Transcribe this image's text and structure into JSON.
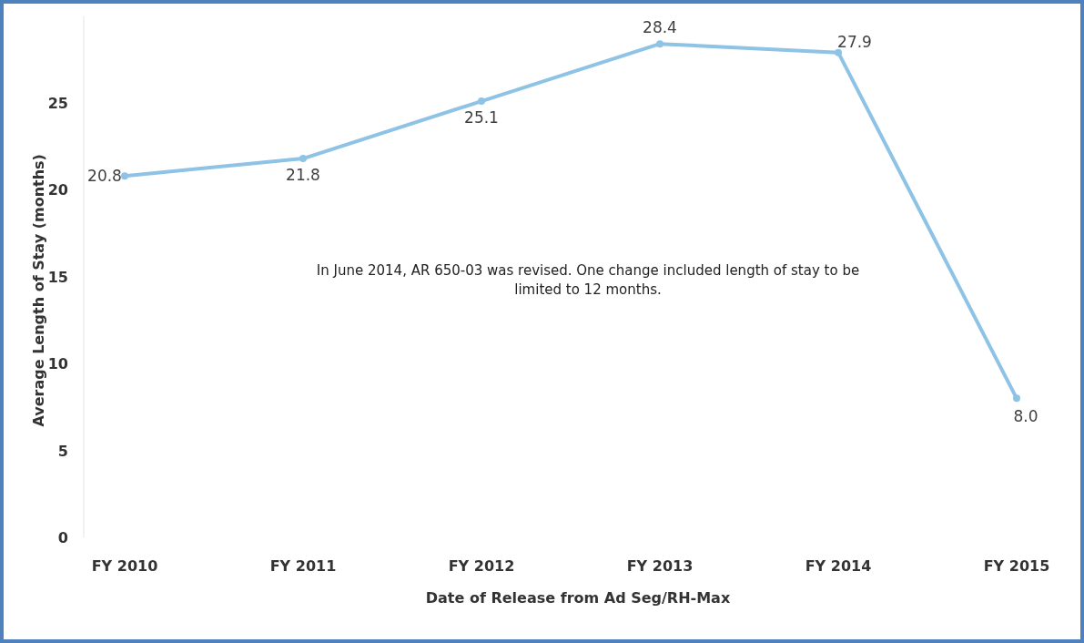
{
  "chart_data": {
    "type": "line",
    "xlabel": "Date of Release from Ad Seg/RH-Max",
    "ylabel": "Average Length of Stay (months)",
    "categories": [
      "FY 2010",
      "FY 2011",
      "FY 2012",
      "FY 2013",
      "FY 2014",
      "FY 2015"
    ],
    "series": [
      {
        "color": "#8ec3e6",
        "values": [
          20.8,
          21.8,
          25.1,
          28.4,
          27.9,
          8.0
        ],
        "value_labels": [
          "20.8",
          "21.8",
          "25.1",
          "28.4",
          "27.9",
          "8.0"
        ]
      }
    ],
    "ylim": [
      0,
      30
    ],
    "yticks": [
      0,
      5,
      10,
      15,
      20,
      25
    ],
    "marker": "circle",
    "line_style": "solid",
    "grid": false,
    "annotations": [
      "In June 2014, AR 650-03 was revised.  One change included length of stay to be limited to 12 months."
    ]
  }
}
